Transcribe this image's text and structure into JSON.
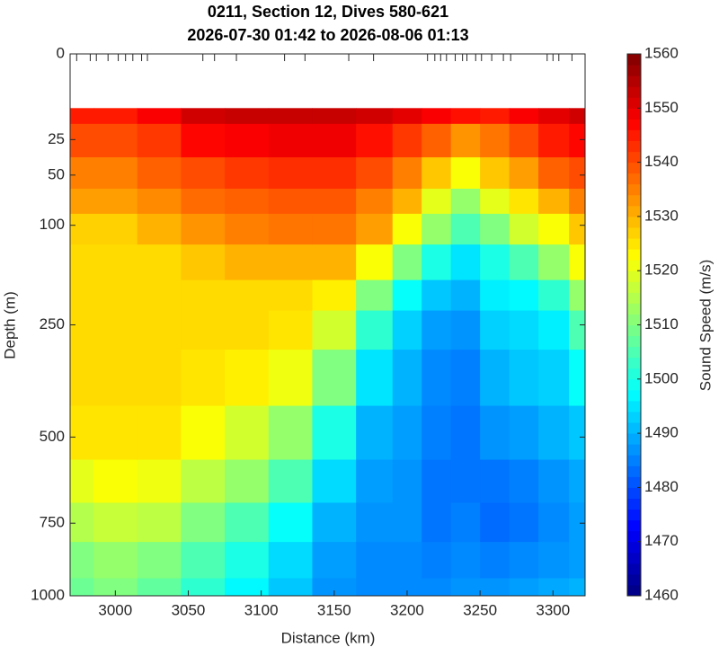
{
  "chart_data": {
    "type": "contour",
    "title": "0211, Section 12, Dives 580-621",
    "subtitle": "2026-07-30 01:42 to 2026-08-06 01:13",
    "x_label": "Distance (km)",
    "y_label": "Depth (m)",
    "colorbar_label": "Sound Speed (m/s)",
    "colormap": "jet",
    "yscale": "sqrt",
    "yreverse": true,
    "xlim": [
      2969,
      3322
    ],
    "xticks": [
      3000,
      3050,
      3100,
      3150,
      3200,
      3250,
      3300
    ],
    "ylim": [
      0,
      1000
    ],
    "yticks": [
      0,
      25,
      50,
      100,
      250,
      500,
      750,
      1000
    ],
    "clim": [
      1460,
      1560
    ],
    "cticks": [
      1460,
      1470,
      1480,
      1490,
      1500,
      1510,
      1520,
      1530,
      1540,
      1550,
      1560
    ],
    "dives_x": [
      2973.5,
      2982.8,
      2987,
      2995,
      3002,
      3007,
      3012,
      3018,
      3022,
      3060,
      3068,
      3083,
      3116,
      3130,
      3160,
      3177,
      3214,
      3219,
      3223,
      3227,
      3233,
      3238,
      3241,
      3247,
      3251,
      3258,
      3266,
      3271,
      3296,
      3300,
      3304,
      3313
    ],
    "x": [
      2970,
      3000,
      3030,
      3060,
      3090,
      3120,
      3150,
      3180,
      3200,
      3220,
      3240,
      3260,
      3280,
      3300,
      3322
    ],
    "depth": [
      10,
      25,
      50,
      75,
      100,
      150,
      200,
      250,
      350,
      500,
      625,
      750,
      875,
      1000
    ],
    "values": [
      [
        1545,
        1540,
        1535,
        1532,
        1527,
        1526,
        1526,
        1526,
        1526,
        1525,
        1520,
        1515,
        1510,
        1508
      ],
      [
        1545,
        1540,
        1535,
        1532,
        1527,
        1526,
        1526,
        1526,
        1526,
        1525,
        1522,
        1517,
        1512,
        1510
      ],
      [
        1548,
        1542,
        1538,
        1534,
        1530,
        1526,
        1526,
        1526,
        1526,
        1525,
        1521,
        1516,
        1510,
        1507
      ],
      [
        1552,
        1547,
        1540,
        1537,
        1533,
        1528,
        1526,
        1526,
        1525,
        1522,
        1516,
        1510,
        1505,
        1502
      ],
      [
        1553,
        1548,
        1542,
        1538,
        1535,
        1530,
        1526,
        1526,
        1524,
        1518,
        1512,
        1505,
        1500,
        1497
      ],
      [
        1553,
        1549,
        1543,
        1539,
        1536,
        1530,
        1526,
        1525,
        1521,
        1512,
        1505,
        1498,
        1494,
        1492
      ],
      [
        1553,
        1549,
        1543,
        1539,
        1536,
        1530,
        1524,
        1518,
        1510,
        1500,
        1494,
        1490,
        1488,
        1487
      ],
      [
        1552,
        1546,
        1540,
        1535,
        1532,
        1522,
        1510,
        1502,
        1495,
        1490,
        1488,
        1487,
        1486,
        1486
      ],
      [
        1550,
        1542,
        1535,
        1530,
        1522,
        1510,
        1498,
        1493,
        1490,
        1488,
        1487,
        1487,
        1486,
        1486
      ],
      [
        1548,
        1538,
        1528,
        1520,
        1512,
        1500,
        1492,
        1488,
        1486,
        1485,
        1484,
        1484,
        1485,
        1486
      ],
      [
        1546,
        1533,
        1522,
        1512,
        1505,
        1495,
        1490,
        1487,
        1485,
        1484,
        1484,
        1485,
        1486,
        1487
      ],
      [
        1545,
        1536,
        1528,
        1520,
        1510,
        1500,
        1496,
        1493,
        1490,
        1487,
        1484,
        1483,
        1485,
        1487
      ],
      [
        1548,
        1540,
        1532,
        1525,
        1518,
        1505,
        1497,
        1494,
        1492,
        1488,
        1485,
        1484,
        1486,
        1488
      ],
      [
        1550,
        1545,
        1538,
        1530,
        1522,
        1512,
        1502,
        1496,
        1493,
        1490,
        1487,
        1486,
        1487,
        1489
      ],
      [
        1552,
        1547,
        1540,
        1535,
        1528,
        1522,
        1512,
        1505,
        1498,
        1492,
        1489,
        1488,
        1488,
        1490
      ]
    ]
  }
}
